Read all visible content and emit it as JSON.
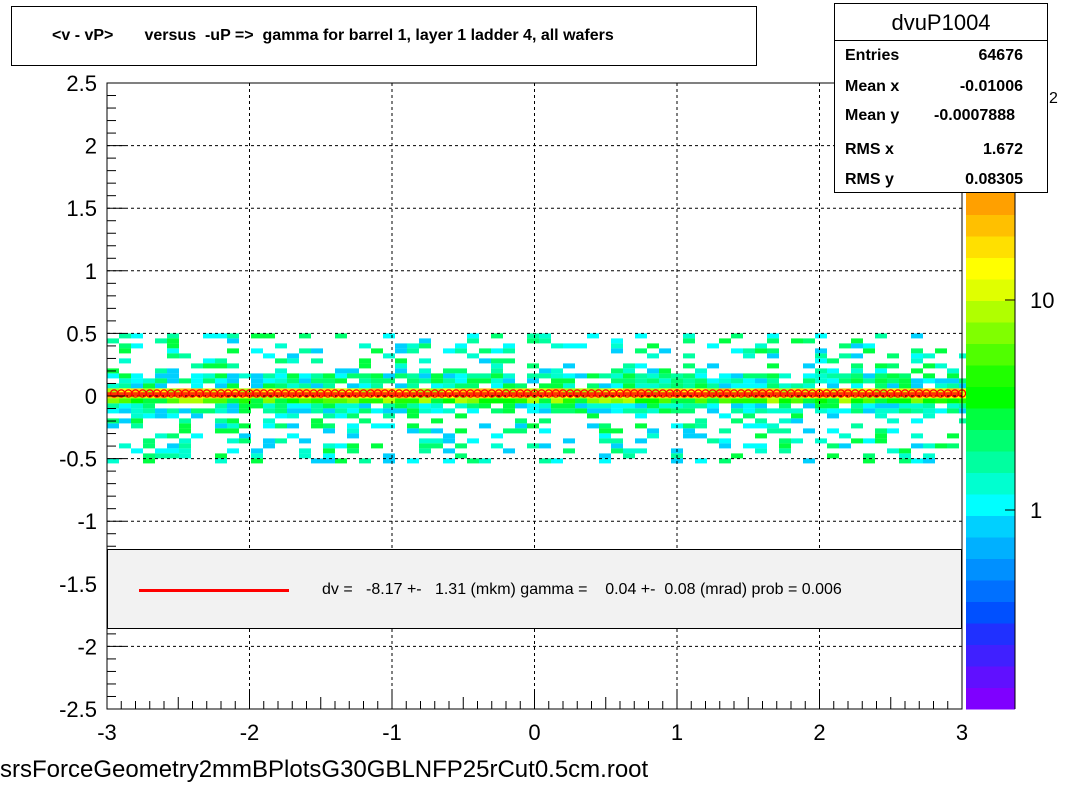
{
  "title": "<v - vP>       versus  -uP =>  gamma for barrel 1, layer 1 ladder 4, all wafers",
  "stats": {
    "name": "dvuP1004",
    "rows": [
      {
        "label": "Entries",
        "value": "64676"
      },
      {
        "label": "Mean x",
        "value": "-0.01006"
      },
      {
        "label": "Mean y",
        "value": "-0.0007888"
      },
      {
        "label": "RMS x",
        "value": "1.672"
      },
      {
        "label": "RMS y",
        "value": "0.08305"
      }
    ]
  },
  "legend": {
    "text": "dv =   -8.17 +-   1.31 (mkm) gamma =    0.04 +-  0.08 (mrad) prob = 0.006",
    "line_color": "#ff0000"
  },
  "filename": "srsForceGeometry2mmBPlotsG30GBLNFP25rCut0.5cm.root",
  "chart_data": {
    "type": "heatmap",
    "xlim": [
      -3,
      3
    ],
    "ylim": [
      -2.5,
      2.5
    ],
    "x_ticks": [
      "-3",
      "-2",
      "-1",
      "0",
      "1",
      "2",
      "3"
    ],
    "y_ticks": [
      "-2.5",
      "-2",
      "-1.5",
      "-1",
      "-0.5",
      "0",
      "0.5",
      "1",
      "1.5",
      "2",
      "2.5"
    ],
    "grid": true,
    "colorbar": {
      "scale": "log",
      "labels": [
        "1",
        "10"
      ],
      "exponent_label": "2",
      "colors": [
        "#7f00ff",
        "#6010ff",
        "#4020ff",
        "#2030ff",
        "#0050ff",
        "#0070ff",
        "#0090ff",
        "#00b0ff",
        "#00d0ff",
        "#00ffff",
        "#00ffd0",
        "#00ffa0",
        "#00ff70",
        "#00ff40",
        "#00ff00",
        "#20ff00",
        "#50ff00",
        "#80ff00",
        "#b0ff00",
        "#e0ff00",
        "#ffff00",
        "#ffe000",
        "#ffc000",
        "#ffa000"
      ]
    },
    "series": [
      {
        "type": "points",
        "color": "#ff0000",
        "x_start": -2.95,
        "x_step": 0.05,
        "y": 0.02
      }
    ],
    "density_bands": [
      {
        "y_range": [
          -0.5,
          0.5
        ],
        "level": "low"
      },
      {
        "y_range": [
          -0.15,
          0.15
        ],
        "level": "medium"
      },
      {
        "y_range": [
          -0.06,
          0.06
        ],
        "level": "high"
      },
      {
        "y_range": [
          -0.02,
          0.03
        ],
        "level": "peak"
      }
    ]
  }
}
